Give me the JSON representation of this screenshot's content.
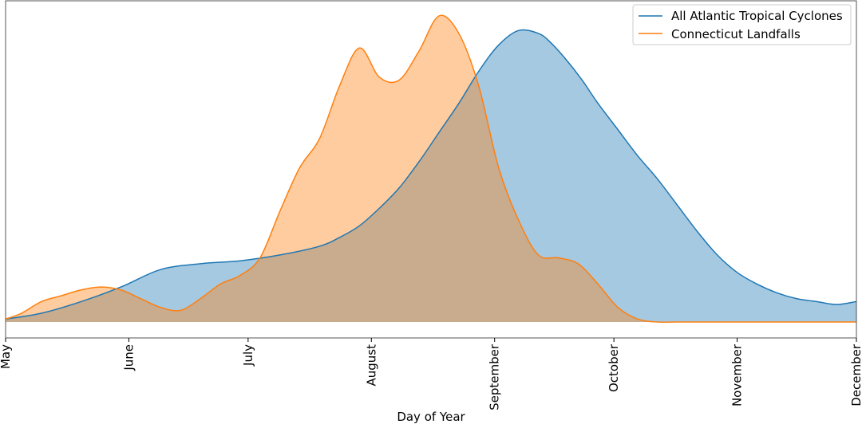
{
  "chart_data": {
    "type": "area",
    "title": "",
    "xlabel": "Day of Year",
    "ylabel": "",
    "x_unit": "day_of_year",
    "xlim": [
      121,
      335
    ],
    "ylim": [
      0,
      1.05
    ],
    "y_scale": "relative density (unlabeled)",
    "grid": false,
    "legend_position": "top-right",
    "x_ticks": [
      {
        "value": 121,
        "label": "May"
      },
      {
        "value": 152,
        "label": "June"
      },
      {
        "value": 182,
        "label": "July"
      },
      {
        "value": 213,
        "label": "August"
      },
      {
        "value": 244,
        "label": "September"
      },
      {
        "value": 274,
        "label": "October"
      },
      {
        "value": 305,
        "label": "November"
      },
      {
        "value": 335,
        "label": "December"
      }
    ],
    "series": [
      {
        "name": "All Atlantic Tropical Cyclones",
        "color": "#1f77b4",
        "fill": "#1f77b4",
        "x": [
          121,
          130,
          140,
          150,
          160,
          170,
          180,
          190,
          200,
          205,
          210,
          215,
          220,
          225,
          230,
          235,
          240,
          245,
          250,
          255,
          258,
          262,
          266,
          270,
          275,
          280,
          285,
          290,
          295,
          300,
          305,
          310,
          315,
          320,
          325,
          330,
          335
        ],
        "y": [
          0.01,
          0.03,
          0.07,
          0.12,
          0.18,
          0.2,
          0.21,
          0.23,
          0.26,
          0.29,
          0.33,
          0.39,
          0.46,
          0.55,
          0.65,
          0.75,
          0.86,
          0.95,
          1.0,
          0.99,
          0.96,
          0.9,
          0.83,
          0.75,
          0.66,
          0.57,
          0.49,
          0.4,
          0.31,
          0.23,
          0.17,
          0.13,
          0.1,
          0.08,
          0.07,
          0.06,
          0.07
        ]
      },
      {
        "name": "Connecticut Landfalls",
        "color": "#ff7f0e",
        "fill": "#ffbb78",
        "x": [
          121,
          125,
          130,
          135,
          140,
          145,
          150,
          155,
          160,
          165,
          170,
          175,
          180,
          185,
          190,
          195,
          200,
          205,
          210,
          215,
          220,
          225,
          230,
          235,
          240,
          245,
          250,
          255,
          260,
          265,
          270,
          275,
          280,
          285,
          290,
          295,
          300,
          305,
          310,
          315,
          320,
          325,
          330,
          335
        ],
        "y": [
          0.01,
          0.03,
          0.07,
          0.09,
          0.11,
          0.12,
          0.11,
          0.08,
          0.05,
          0.04,
          0.08,
          0.13,
          0.16,
          0.22,
          0.38,
          0.53,
          0.63,
          0.81,
          0.94,
          0.84,
          0.83,
          0.93,
          1.05,
          0.99,
          0.81,
          0.53,
          0.35,
          0.23,
          0.22,
          0.2,
          0.13,
          0.05,
          0.01,
          0.0,
          0.0,
          0.0,
          0.0,
          0.0,
          0.0,
          0.0,
          0.0,
          0.0,
          0.0,
          0.0
        ],
        "note_ignore": ""
      }
    ]
  }
}
